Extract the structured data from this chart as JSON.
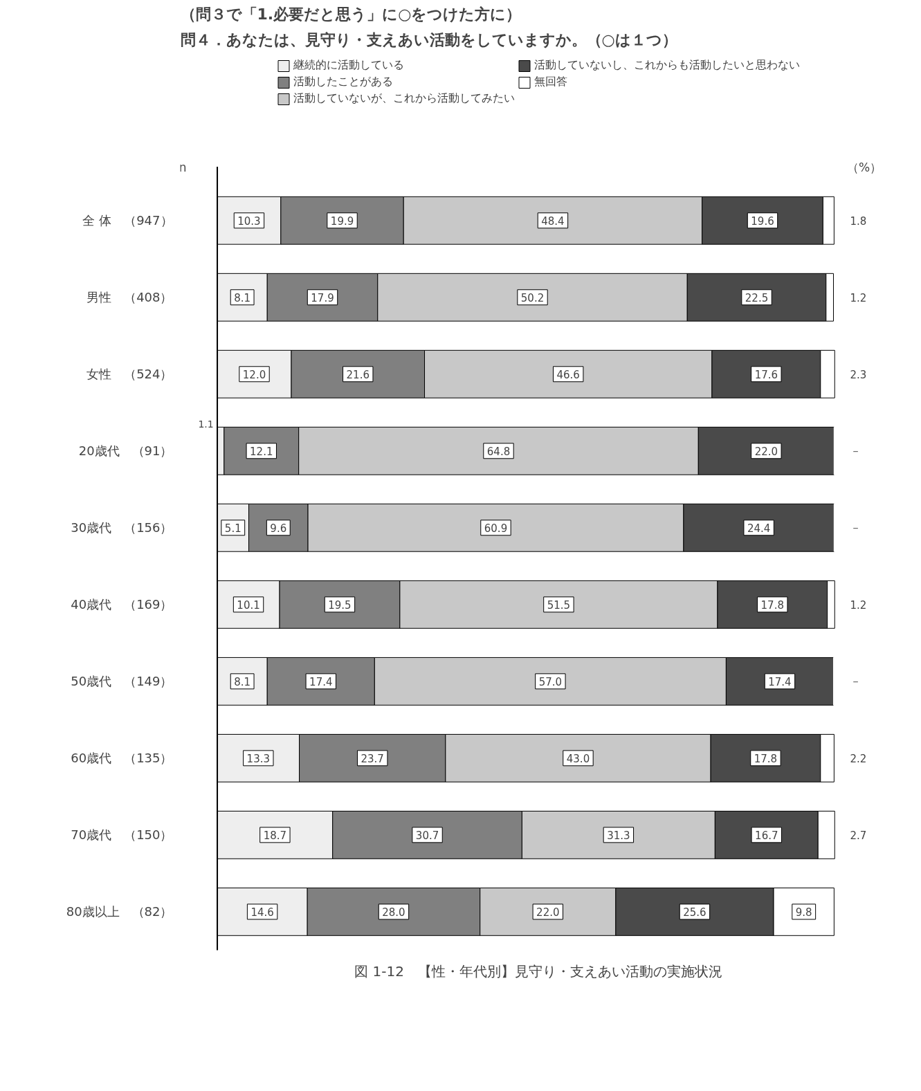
{
  "chart_data": {
    "type": "bar",
    "orientation": "horizontal",
    "stacked": true,
    "title": "（問３で「1.必要だと思う」に○をつけた方に）",
    "subtitle": "問４．あなたは、見守り・支えあい活動をしていますか。（○は１つ）",
    "categories": [
      "全 体　（947）",
      "男性　（408）",
      "女性　（524）",
      "20歳代　（91）",
      "30歳代　（156）",
      "40歳代　（169）",
      "50歳代　（149）",
      "60歳代　（135）",
      "70歳代　（150）",
      "80歳以上　（82）"
    ],
    "series": [
      {
        "name": "継続的に活動している",
        "color": "#eeeeee",
        "values": [
          10.3,
          8.1,
          12.0,
          1.1,
          5.1,
          10.1,
          8.1,
          13.3,
          18.7,
          14.6
        ],
        "value_labels": [
          "10.3",
          "8.1",
          "12.0",
          "1.1",
          "5.1",
          "10.1",
          "8.1",
          "13.3",
          "18.7",
          "14.6"
        ]
      },
      {
        "name": "活動したことがある",
        "color": "#808080",
        "values": [
          19.9,
          17.9,
          21.6,
          12.1,
          9.6,
          19.5,
          17.4,
          23.7,
          30.7,
          28.0
        ],
        "value_labels": [
          "19.9",
          "17.9",
          "21.6",
          "12.1",
          "9.6",
          "19.5",
          "17.4",
          "23.7",
          "30.7",
          "28.0"
        ]
      },
      {
        "name": "活動していないが、これから活動してみたい",
        "color": "#c8c8c8",
        "values": [
          48.4,
          50.2,
          46.6,
          64.8,
          60.9,
          51.5,
          57.0,
          43.0,
          31.3,
          22.0
        ],
        "value_labels": [
          "48.4",
          "50.2",
          "46.6",
          "64.8",
          "60.9",
          "51.5",
          "57.0",
          "43.0",
          "31.3",
          "22.0"
        ]
      },
      {
        "name": "活動していないし、これからも活動したいと思わない",
        "color": "#4a4a4a",
        "values": [
          19.6,
          22.5,
          17.6,
          22.0,
          24.4,
          17.8,
          17.4,
          17.8,
          16.7,
          25.6
        ],
        "value_labels": [
          "19.6",
          "22.5",
          "17.6",
          "22.0",
          "24.4",
          "17.8",
          "17.4",
          "17.8",
          "16.7",
          "25.6"
        ]
      },
      {
        "name": "無回答",
        "color": "#ffffff",
        "values": [
          1.8,
          1.2,
          2.3,
          0,
          0,
          1.2,
          0,
          2.2,
          2.7,
          9.8
        ],
        "value_labels": [
          "1.8",
          "1.2",
          "2.3",
          "－",
          "－",
          "1.2",
          "－",
          "2.2",
          "2.7",
          "9.8"
        ]
      }
    ],
    "annotations": [
      "n",
      "（%）",
      "図 1-12　【性・年代別】見守り・支えあい活動の実施状況"
    ],
    "legend": "top",
    "tick_labels": "y"
  }
}
